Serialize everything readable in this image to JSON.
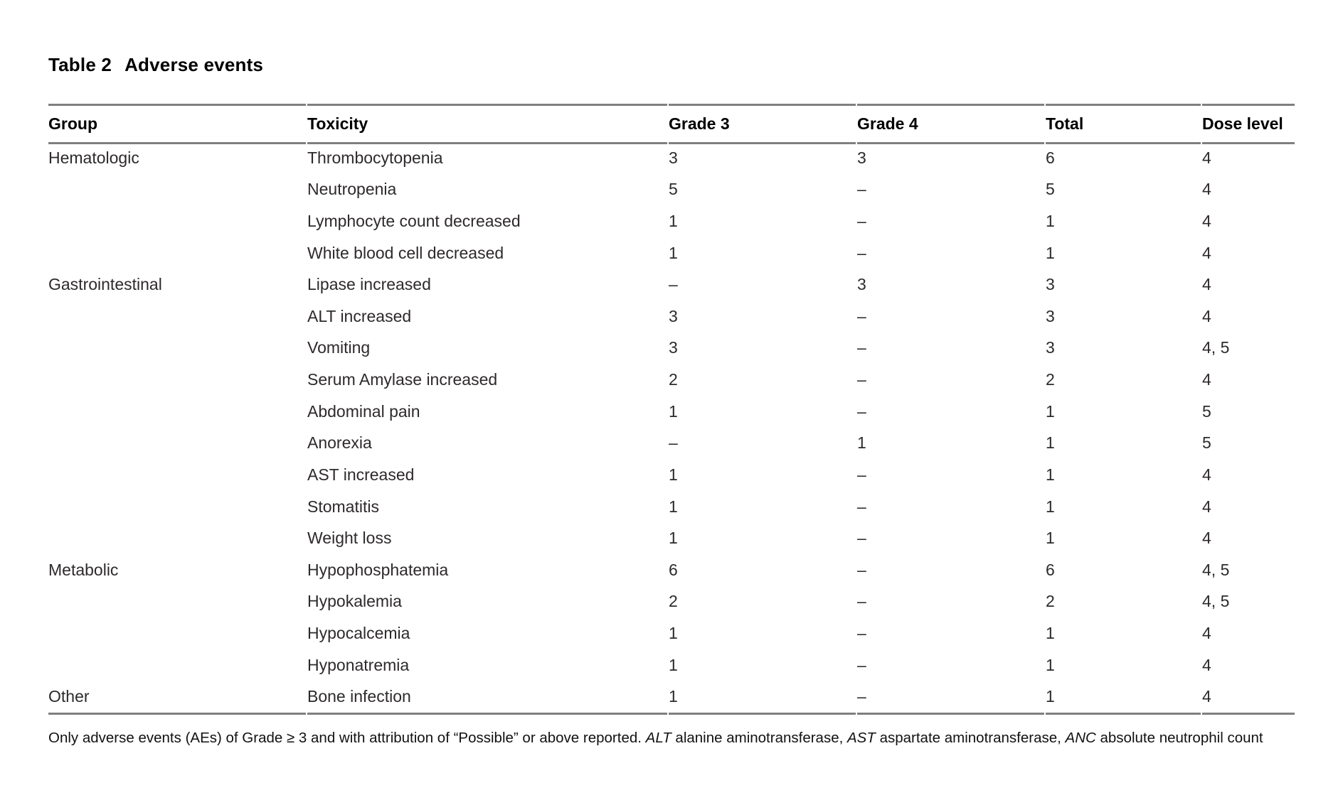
{
  "table": {
    "title_label": "Table 2",
    "title_text": "Adverse events",
    "columns": [
      "Group",
      "Toxicity",
      "Grade 3",
      "Grade 4",
      "Total",
      "Dose level"
    ],
    "rows": [
      {
        "group": "Hematologic",
        "toxicity": "Thrombocytopenia",
        "grade3": "3",
        "grade4": "3",
        "total": "6",
        "dose_level": "4"
      },
      {
        "group": "",
        "toxicity": "Neutropenia",
        "grade3": "5",
        "grade4": "–",
        "total": "5",
        "dose_level": "4"
      },
      {
        "group": "",
        "toxicity": "Lymphocyte count decreased",
        "grade3": "1",
        "grade4": "–",
        "total": "1",
        "dose_level": "4"
      },
      {
        "group": "",
        "toxicity": "White blood cell decreased",
        "grade3": "1",
        "grade4": "–",
        "total": "1",
        "dose_level": "4"
      },
      {
        "group": "Gastrointestinal",
        "toxicity": "Lipase increased",
        "grade3": "–",
        "grade4": "3",
        "total": "3",
        "dose_level": "4"
      },
      {
        "group": "",
        "toxicity": "ALT increased",
        "grade3": "3",
        "grade4": "–",
        "total": "3",
        "dose_level": "4"
      },
      {
        "group": "",
        "toxicity": "Vomiting",
        "grade3": "3",
        "grade4": "–",
        "total": "3",
        "dose_level": "4, 5"
      },
      {
        "group": "",
        "toxicity": "Serum Amylase increased",
        "grade3": "2",
        "grade4": "–",
        "total": "2",
        "dose_level": "4"
      },
      {
        "group": "",
        "toxicity": "Abdominal pain",
        "grade3": "1",
        "grade4": "–",
        "total": "1",
        "dose_level": "5"
      },
      {
        "group": "",
        "toxicity": "Anorexia",
        "grade3": "–",
        "grade4": "1",
        "total": "1",
        "dose_level": "5"
      },
      {
        "group": "",
        "toxicity": "AST increased",
        "grade3": "1",
        "grade4": "–",
        "total": "1",
        "dose_level": "4"
      },
      {
        "group": "",
        "toxicity": "Stomatitis",
        "grade3": "1",
        "grade4": "–",
        "total": "1",
        "dose_level": "4"
      },
      {
        "group": "",
        "toxicity": "Weight loss",
        "grade3": "1",
        "grade4": "–",
        "total": "1",
        "dose_level": "4"
      },
      {
        "group": "Metabolic",
        "toxicity": "Hypophosphatemia",
        "grade3": "6",
        "grade4": "–",
        "total": "6",
        "dose_level": "4, 5"
      },
      {
        "group": "",
        "toxicity": "Hypokalemia",
        "grade3": "2",
        "grade4": "–",
        "total": "2",
        "dose_level": "4, 5"
      },
      {
        "group": "",
        "toxicity": "Hypocalcemia",
        "grade3": "1",
        "grade4": "–",
        "total": "1",
        "dose_level": "4"
      },
      {
        "group": "",
        "toxicity": "Hyponatremia",
        "grade3": "1",
        "grade4": "–",
        "total": "1",
        "dose_level": "4"
      },
      {
        "group": "Other",
        "toxicity": "Bone infection",
        "grade3": "1",
        "grade4": "–",
        "total": "1",
        "dose_level": "4"
      }
    ],
    "footnote_segments": [
      {
        "text": "Only adverse events (AEs) of Grade ≥ 3 and with attribution of “Possible” or above reported. ",
        "italic": false
      },
      {
        "text": "ALT",
        "italic": true
      },
      {
        "text": " alanine aminotransferase, ",
        "italic": false
      },
      {
        "text": "AST",
        "italic": true
      },
      {
        "text": " aspartate aminotransferase, ",
        "italic": false
      },
      {
        "text": "ANC",
        "italic": true
      },
      {
        "text": " absolute neutrophil count",
        "italic": false
      }
    ]
  }
}
